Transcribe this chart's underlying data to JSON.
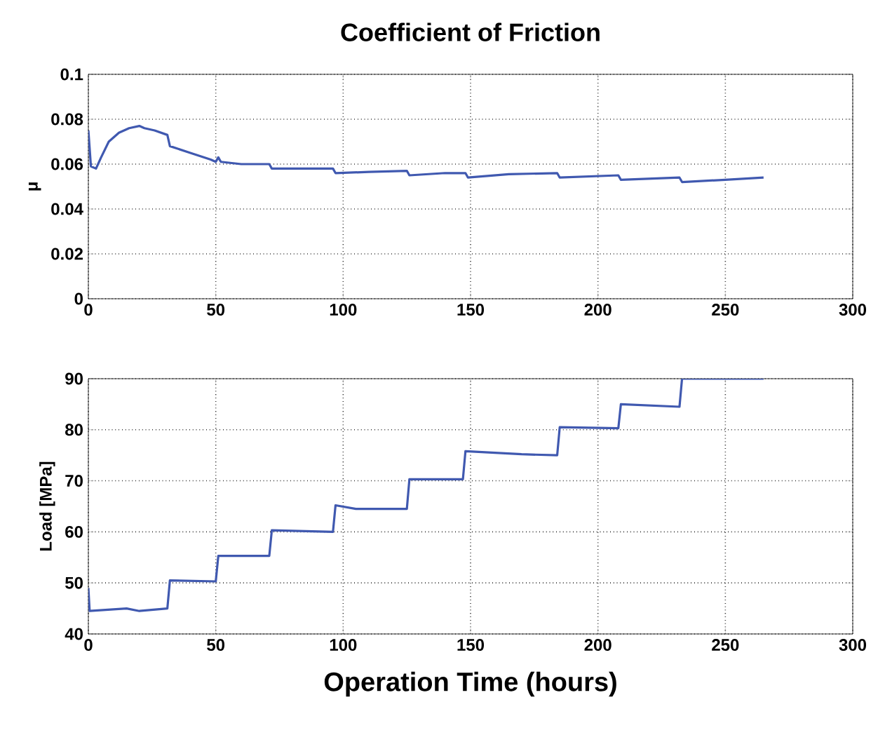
{
  "chart_data": [
    {
      "type": "line",
      "title": "Coefficient of Friction",
      "ylabel": "μ",
      "xlim": [
        0,
        300
      ],
      "ylim": [
        0,
        0.1
      ],
      "xticks": [
        0,
        50,
        100,
        150,
        200,
        250,
        300
      ],
      "yticks": [
        0,
        0.02,
        0.04,
        0.06,
        0.08,
        0.1
      ],
      "grid": true,
      "x": [
        0,
        1,
        3,
        5,
        8,
        12,
        16,
        20,
        22,
        26,
        31,
        32,
        40,
        48,
        50,
        51,
        52,
        60,
        71,
        72,
        96,
        97,
        110,
        125,
        126,
        140,
        148,
        149,
        165,
        184,
        185,
        208,
        209,
        232,
        233,
        250,
        265
      ],
      "series": [
        {
          "color": "#4059b0",
          "values": [
            0.075,
            0.059,
            0.058,
            0.063,
            0.07,
            0.074,
            0.076,
            0.077,
            0.076,
            0.075,
            0.073,
            0.068,
            0.065,
            0.062,
            0.061,
            0.063,
            0.061,
            0.06,
            0.06,
            0.058,
            0.058,
            0.056,
            0.0565,
            0.057,
            0.055,
            0.056,
            0.056,
            0.054,
            0.0555,
            0.056,
            0.054,
            0.055,
            0.053,
            0.054,
            0.052,
            0.053,
            0.054
          ]
        }
      ]
    },
    {
      "type": "line",
      "xlabel": "Operation Time (hours)",
      "ylabel": "Load [MPa]",
      "xlim": [
        0,
        300
      ],
      "ylim": [
        40,
        90
      ],
      "xticks": [
        0,
        50,
        100,
        150,
        200,
        250,
        300
      ],
      "yticks": [
        40,
        50,
        60,
        70,
        80,
        90
      ],
      "grid": true,
      "x": [
        0,
        0.5,
        15,
        20,
        31,
        32,
        50,
        51,
        71,
        72,
        96,
        97,
        105,
        125,
        126,
        147,
        148,
        170,
        184,
        185,
        208,
        209,
        232,
        233,
        265
      ],
      "series": [
        {
          "color": "#4059b0",
          "values": [
            49,
            44.5,
            45,
            44.5,
            45,
            50.5,
            50.3,
            55.3,
            55.3,
            60.3,
            60,
            65.2,
            64.5,
            64.5,
            70.3,
            70.3,
            75.8,
            75.2,
            75,
            80.5,
            80.3,
            85,
            84.5,
            90,
            90
          ]
        }
      ]
    }
  ]
}
